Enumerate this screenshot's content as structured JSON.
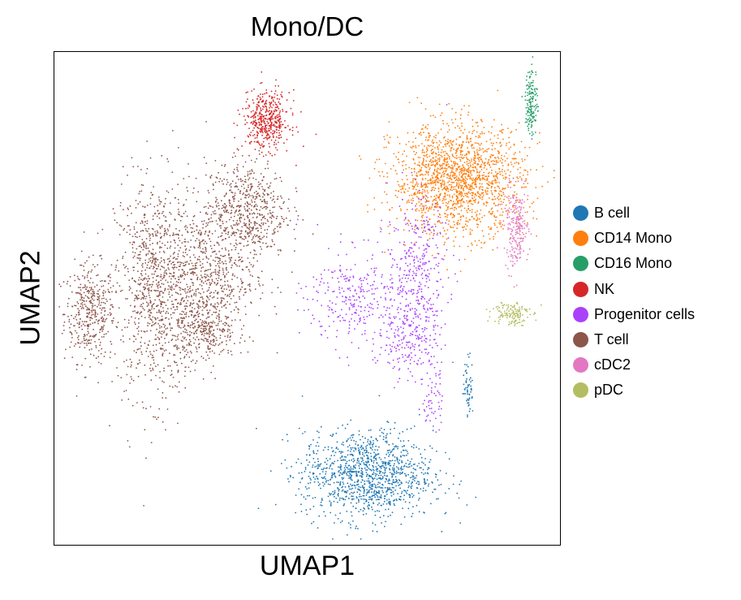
{
  "chart_data": {
    "type": "scatter",
    "title": "Mono/DC",
    "xlabel": "UMAP1",
    "ylabel": "UMAP2",
    "xlim": [
      0,
      100
    ],
    "ylim": [
      0,
      100
    ],
    "grid": false,
    "ticks": false,
    "legend_position": "right",
    "categories": [
      {
        "name": "B cell",
        "color": "#1f77b4"
      },
      {
        "name": "CD14 Mono",
        "color": "#ff7f0e"
      },
      {
        "name": "CD16 Mono",
        "color": "#279e68"
      },
      {
        "name": "NK",
        "color": "#d62728"
      },
      {
        "name": "Progenitor cells",
        "color": "#aa40fc"
      },
      {
        "name": "T cell",
        "color": "#8c564b"
      },
      {
        "name": "cDC2",
        "color": "#e377c2"
      },
      {
        "name": "pDC",
        "color": "#b5bd61"
      }
    ],
    "clusters": [
      {
        "category": "T cell",
        "cx": 7,
        "cy": 47,
        "sx": 2.5,
        "sy": 5,
        "n": 400
      },
      {
        "category": "T cell",
        "cx": 20,
        "cy": 52,
        "sx": 4,
        "sy": 11,
        "n": 900
      },
      {
        "category": "T cell",
        "cx": 30,
        "cy": 54,
        "sx": 5,
        "sy": 7,
        "n": 700
      },
      {
        "category": "T cell",
        "cx": 38,
        "cy": 68,
        "sx": 4,
        "sy": 5,
        "n": 600
      },
      {
        "category": "T cell",
        "cx": 30,
        "cy": 43,
        "sx": 3,
        "sy": 3,
        "n": 250
      },
      {
        "category": "NK",
        "cx": 42,
        "cy": 86,
        "sx": 2.3,
        "sy": 3,
        "n": 450
      },
      {
        "category": "CD14 Mono",
        "cx": 80,
        "cy": 74,
        "sx": 6.5,
        "sy": 5.5,
        "n": 1700
      },
      {
        "category": "CD16 Mono",
        "cx": 94.5,
        "cy": 90,
        "sx": 0.6,
        "sy": 3.5,
        "n": 160
      },
      {
        "category": "cDC2",
        "cx": 91.5,
        "cy": 64,
        "sx": 1.2,
        "sy": 4,
        "n": 220
      },
      {
        "category": "pDC",
        "cx": 90.5,
        "cy": 47,
        "sx": 1.8,
        "sy": 1.3,
        "n": 140
      },
      {
        "category": "Progenitor cells",
        "cx": 60,
        "cy": 50,
        "sx": 5,
        "sy": 5,
        "n": 300
      },
      {
        "category": "Progenitor cells",
        "cx": 72,
        "cy": 55,
        "sx": 3,
        "sy": 8,
        "n": 350
      },
      {
        "category": "Progenitor cells",
        "cx": 70,
        "cy": 42,
        "sx": 3,
        "sy": 4,
        "n": 180
      },
      {
        "category": "Progenitor cells",
        "cx": 75,
        "cy": 30,
        "sx": 1,
        "sy": 4,
        "n": 60
      },
      {
        "category": "B cell",
        "cx": 62,
        "cy": 14,
        "sx": 6.5,
        "sy": 4.5,
        "n": 1200
      },
      {
        "category": "B cell",
        "cx": 82,
        "cy": 32,
        "sx": 0.5,
        "sy": 3,
        "n": 60
      }
    ]
  }
}
